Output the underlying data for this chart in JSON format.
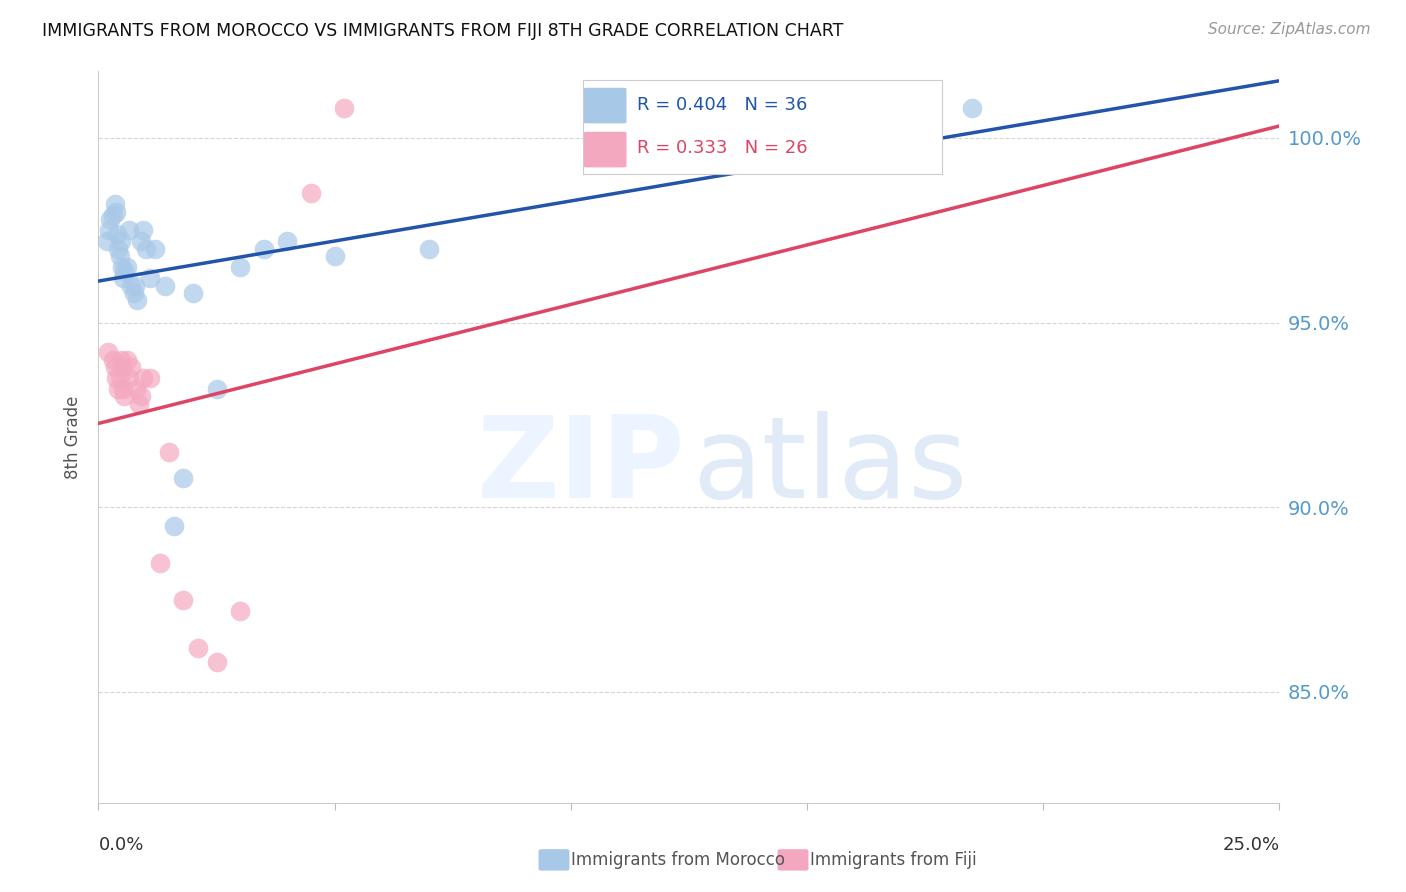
{
  "title": "IMMIGRANTS FROM MOROCCO VS IMMIGRANTS FROM FIJI 8TH GRADE CORRELATION CHART",
  "source": "Source: ZipAtlas.com",
  "ylabel": "8th Grade",
  "xlim": [
    0.0,
    25.0
  ],
  "ylim": [
    82.0,
    101.8
  ],
  "yticks": [
    85.0,
    90.0,
    95.0,
    100.0
  ],
  "morocco_R": 0.404,
  "morocco_N": 36,
  "fiji_R": 0.333,
  "fiji_N": 26,
  "morocco_color": "#a8c8e8",
  "fiji_color": "#f4a8c0",
  "morocco_line_color": "#2255aa",
  "fiji_line_color": "#dd4466",
  "legend_morocco": "Immigrants from Morocco",
  "legend_fiji": "Immigrants from Fiji",
  "morocco_x": [
    0.18,
    0.22,
    0.25,
    0.3,
    0.35,
    0.38,
    0.4,
    0.42,
    0.45,
    0.48,
    0.5,
    0.52,
    0.55,
    0.6,
    0.65,
    0.7,
    0.75,
    0.78,
    0.82,
    0.9,
    0.95,
    1.0,
    1.1,
    1.2,
    1.4,
    1.6,
    1.8,
    2.0,
    2.5,
    3.0,
    3.5,
    4.0,
    5.0,
    7.0,
    14.0,
    18.5
  ],
  "morocco_y": [
    97.2,
    97.5,
    97.8,
    97.9,
    98.2,
    98.0,
    97.4,
    97.0,
    96.8,
    97.2,
    96.5,
    96.2,
    96.4,
    96.5,
    97.5,
    96.0,
    95.8,
    96.0,
    95.6,
    97.2,
    97.5,
    97.0,
    96.2,
    97.0,
    96.0,
    89.5,
    90.8,
    95.8,
    93.2,
    96.5,
    97.0,
    97.2,
    96.8,
    97.0,
    100.5,
    100.8
  ],
  "fiji_x": [
    0.2,
    0.3,
    0.35,
    0.38,
    0.42,
    0.45,
    0.48,
    0.5,
    0.52,
    0.55,
    0.6,
    0.65,
    0.7,
    0.8,
    0.85,
    0.9,
    0.95,
    1.1,
    1.3,
    1.5,
    1.8,
    2.1,
    2.5,
    3.0,
    4.5,
    5.2
  ],
  "fiji_y": [
    94.2,
    94.0,
    93.8,
    93.5,
    93.2,
    93.5,
    94.0,
    93.8,
    93.2,
    93.0,
    94.0,
    93.5,
    93.8,
    93.2,
    92.8,
    93.0,
    93.5,
    93.5,
    88.5,
    91.5,
    87.5,
    86.2,
    85.8,
    87.2,
    98.5,
    100.8
  ]
}
